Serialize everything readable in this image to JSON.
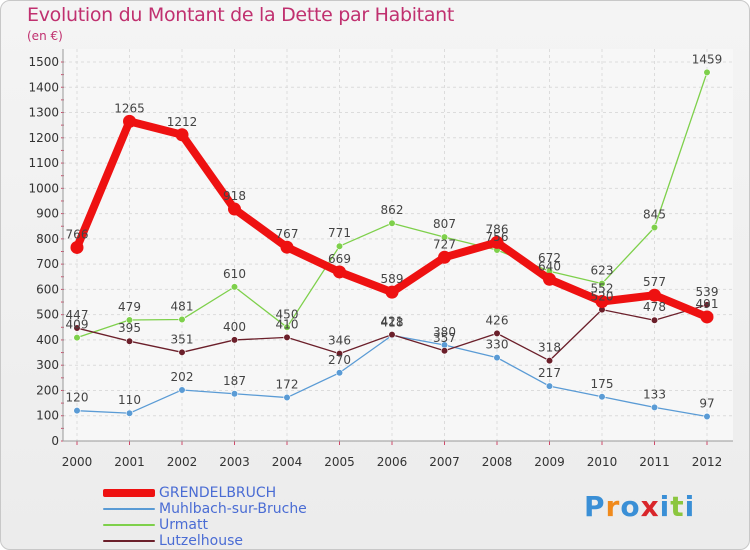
{
  "chart_data": {
    "type": "line",
    "title": "Evolution du Montant de la Dette par Habitant",
    "unit_label": "(en €)",
    "xlabel": "",
    "ylabel": "",
    "ylim": [
      0,
      1500
    ],
    "yticks": [
      0,
      100,
      200,
      300,
      400,
      500,
      600,
      700,
      800,
      900,
      1000,
      1100,
      1200,
      1300,
      1400,
      1500
    ],
    "categories": [
      "2000",
      "2001",
      "2002",
      "2003",
      "2004",
      "2005",
      "2006",
      "2007",
      "2008",
      "2009",
      "2010",
      "2011",
      "2012"
    ],
    "grid": true,
    "legend_position": "bottom-left",
    "series": [
      {
        "name": "Muhlbach-sur-Bruche",
        "color": "#5a9bd5",
        "values": [
          120,
          110,
          202,
          187,
          172,
          270,
          418,
          380,
          330,
          217,
          175,
          133,
          97
        ]
      },
      {
        "name": "Urmatt",
        "color": "#7ed04b",
        "values": [
          409,
          479,
          481,
          610,
          450,
          771,
          862,
          807,
          756,
          672,
          623,
          845,
          1459
        ]
      },
      {
        "name": "Lutzelhouse",
        "color": "#6b1f2a",
        "values": [
          447,
          395,
          351,
          400,
          410,
          346,
          421,
          357,
          426,
          318,
          520,
          478,
          539
        ]
      },
      {
        "name": "GRENDELBRUCH",
        "color": "#ee1111",
        "values": [
          766,
          1265,
          1212,
          918,
          767,
          669,
          589,
          727,
          786,
          640,
          552,
          577,
          491
        ]
      }
    ],
    "legend_order": [
      "GRENDELBRUCH",
      "Muhlbach-sur-Bruche",
      "Urmatt",
      "Lutzelhouse"
    ]
  },
  "logo": {
    "letters": [
      "P",
      "r",
      "o",
      "x",
      "i",
      "t",
      "i"
    ],
    "colors": [
      "#3a8fd6",
      "#f08a1c",
      "#3a8fd6",
      "#d9262b",
      "#3a8fd6",
      "#8cc63f",
      "#3a8fd6"
    ]
  }
}
